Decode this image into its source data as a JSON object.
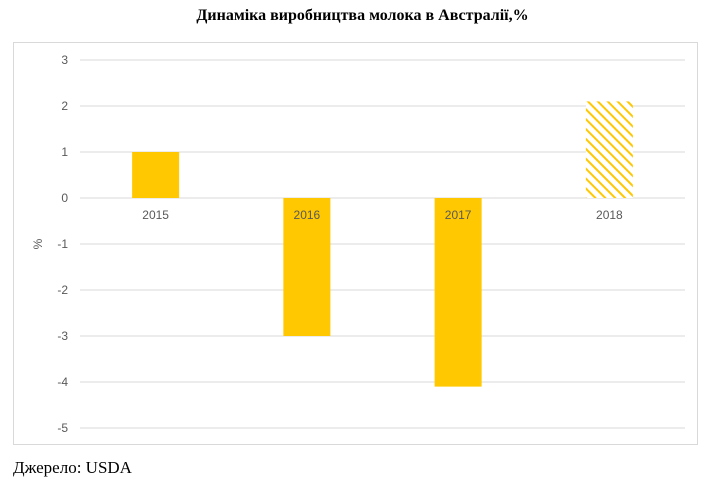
{
  "chart_data": {
    "type": "bar",
    "title": "Динаміка виробництва молока в Австралії,%",
    "xlabel": "",
    "ylabel": "%",
    "categories": [
      "2015",
      "2016",
      "2017",
      "2018"
    ],
    "values": [
      1.0,
      -3.0,
      -4.1,
      2.1
    ],
    "ylim": [
      -5,
      3
    ],
    "yticks": [
      "3",
      "2",
      "1",
      "0",
      "-1",
      "-2",
      "-3",
      "-4",
      "-5"
    ],
    "grid": true,
    "legend": "none",
    "bar_color": "#ffc800",
    "forecast_category": "2018",
    "forecast_style": "hatched"
  },
  "source": "Джерело: USDA"
}
